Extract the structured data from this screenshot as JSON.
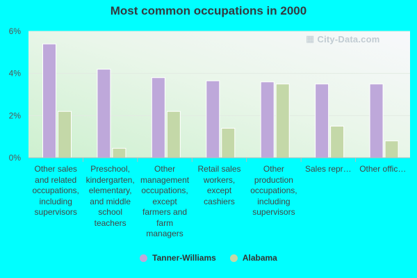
{
  "chart_data": {
    "type": "bar",
    "title": "Most common occupations in 2000",
    "categories": [
      "Other sales and related occupations, including supervisors",
      "Preschool, kindergarten, elementary, and middle school teachers",
      "Other management occupations, except farmers and farm managers",
      "Retail sales workers, except cashiers",
      "Other production occupations, including supervisors",
      "Sales repr…",
      "Other offic…"
    ],
    "series": [
      {
        "name": "Tanner-Williams",
        "color": "#bea8da",
        "values": [
          5.4,
          4.2,
          3.8,
          3.65,
          3.6,
          3.5,
          3.5
        ]
      },
      {
        "name": "Alabama",
        "color": "#c4d8a8",
        "values": [
          2.2,
          0.45,
          2.2,
          1.4,
          3.5,
          1.5,
          0.8
        ]
      }
    ],
    "ylim": [
      0,
      6
    ],
    "yticks": [
      "0%",
      "2%",
      "4%",
      "6%"
    ],
    "ytick_values": [
      0,
      2,
      4,
      6
    ],
    "xlabel": "",
    "ylabel": "",
    "grid": true,
    "legend_position": "bottom"
  },
  "watermark": "City-Data.com"
}
